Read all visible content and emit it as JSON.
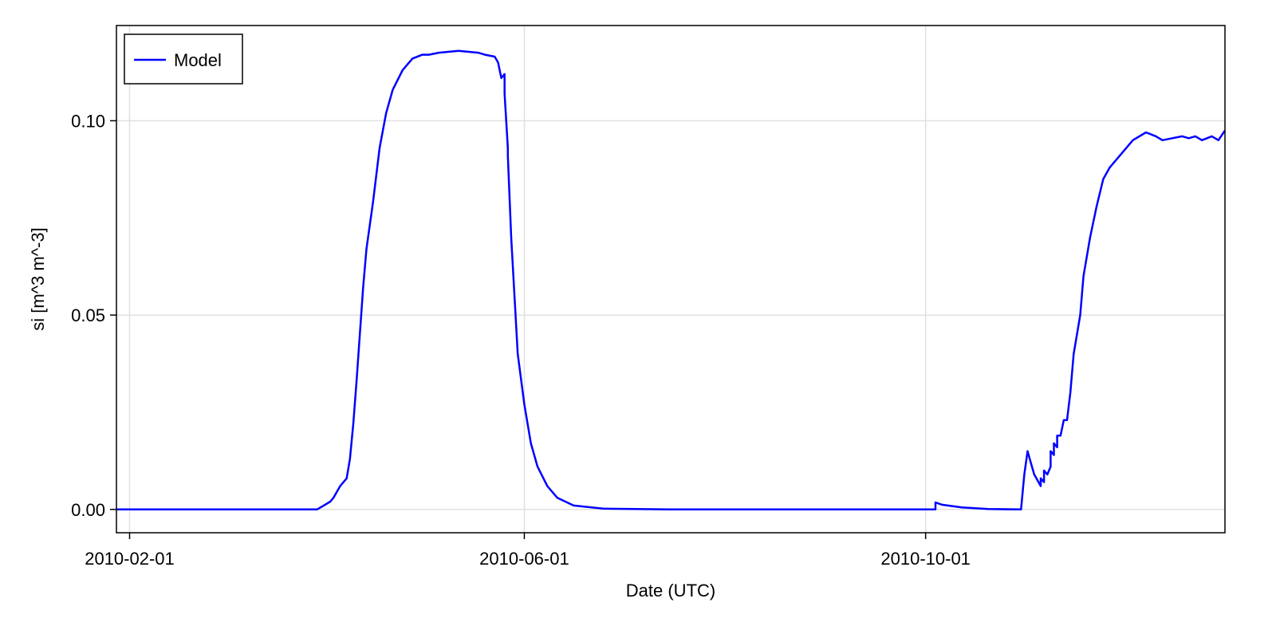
{
  "chart_data": {
    "type": "line",
    "title": "",
    "xlabel": "Date (UTC)",
    "ylabel": "si [m^3 m^-3]",
    "x_tick_labels": [
      "2010-02-01",
      "2010-06-01",
      "2010-10-01"
    ],
    "x_tick_dates": [
      "2010-02-01",
      "2010-06-01",
      "2010-10-01"
    ],
    "y_tick_labels": [
      "0.00",
      "0.05",
      "0.10"
    ],
    "y_tick_values": [
      0.0,
      0.05,
      0.1
    ],
    "xlim": [
      "2010-01-28",
      "2010-12-31"
    ],
    "ylim": [
      -0.006,
      0.1245
    ],
    "grid": true,
    "legend_position": "top-left",
    "colors": {
      "model": "#0000ff"
    },
    "series": [
      {
        "name": "Model",
        "points": [
          [
            "2010-01-28",
            0.0
          ],
          [
            "2010-03-20",
            0.0
          ],
          [
            "2010-03-30",
            0.0
          ],
          [
            "2010-04-01",
            0.001
          ],
          [
            "2010-04-03",
            0.002
          ],
          [
            "2010-04-04",
            0.003
          ],
          [
            "2010-04-06",
            0.006
          ],
          [
            "2010-04-08",
            0.008
          ],
          [
            "2010-04-09",
            0.013
          ],
          [
            "2010-04-10",
            0.022
          ],
          [
            "2010-04-11",
            0.033
          ],
          [
            "2010-04-12",
            0.045
          ],
          [
            "2010-04-13",
            0.057
          ],
          [
            "2010-04-14",
            0.067
          ],
          [
            "2010-04-16",
            0.079
          ],
          [
            "2010-04-18",
            0.093
          ],
          [
            "2010-04-20",
            0.102
          ],
          [
            "2010-04-22",
            0.108
          ],
          [
            "2010-04-25",
            0.113
          ],
          [
            "2010-04-28",
            0.116
          ],
          [
            "2010-05-01",
            0.117
          ],
          [
            "2010-05-03",
            0.117
          ],
          [
            "2010-05-06",
            0.1175
          ],
          [
            "2010-05-12",
            0.118
          ],
          [
            "2010-05-18",
            0.1175
          ],
          [
            "2010-05-20",
            0.117
          ],
          [
            "2010-05-23",
            0.1165
          ],
          [
            "2010-05-24",
            0.115
          ],
          [
            "2010-05-25",
            0.111
          ],
          [
            "2010-05-26",
            0.112
          ],
          [
            "2010-05-26",
            0.107
          ],
          [
            "2010-05-27",
            0.093
          ],
          [
            "2010-05-27",
            0.091
          ],
          [
            "2010-05-28",
            0.07
          ],
          [
            "2010-05-29",
            0.055
          ],
          [
            "2010-05-30",
            0.04
          ],
          [
            "2010-06-01",
            0.027
          ],
          [
            "2010-06-03",
            0.017
          ],
          [
            "2010-06-05",
            0.011
          ],
          [
            "2010-06-08",
            0.006
          ],
          [
            "2010-06-11",
            0.003
          ],
          [
            "2010-06-16",
            0.001
          ],
          [
            "2010-06-25",
            0.0002
          ],
          [
            "2010-07-15",
            0.0
          ],
          [
            "2010-10-04",
            0.0
          ],
          [
            "2010-10-04",
            0.0018
          ],
          [
            "2010-10-06",
            0.0012
          ],
          [
            "2010-10-12",
            0.0005
          ],
          [
            "2010-10-20",
            0.0001
          ],
          [
            "2010-10-30",
            0.0
          ],
          [
            "2010-10-31",
            0.009
          ],
          [
            "2010-11-01",
            0.015
          ],
          [
            "2010-11-02",
            0.012
          ],
          [
            "2010-11-03",
            0.009
          ],
          [
            "2010-11-05",
            0.006
          ],
          [
            "2010-11-05",
            0.008
          ],
          [
            "2010-11-06",
            0.007
          ],
          [
            "2010-11-06",
            0.01
          ],
          [
            "2010-11-07",
            0.009
          ],
          [
            "2010-11-08",
            0.011
          ],
          [
            "2010-11-08",
            0.015
          ],
          [
            "2010-11-09",
            0.014
          ],
          [
            "2010-11-09",
            0.017
          ],
          [
            "2010-11-10",
            0.016
          ],
          [
            "2010-11-10",
            0.019
          ],
          [
            "2010-11-11",
            0.019
          ],
          [
            "2010-11-12",
            0.023
          ],
          [
            "2010-11-13",
            0.023
          ],
          [
            "2010-11-14",
            0.03
          ],
          [
            "2010-11-15",
            0.04
          ],
          [
            "2010-11-17",
            0.05
          ],
          [
            "2010-11-18",
            0.06
          ],
          [
            "2010-11-20",
            0.07
          ],
          [
            "2010-11-22",
            0.078
          ],
          [
            "2010-11-24",
            0.085
          ],
          [
            "2010-11-26",
            0.088
          ],
          [
            "2010-11-29",
            0.091
          ],
          [
            "2010-12-03",
            0.095
          ],
          [
            "2010-12-07",
            0.097
          ],
          [
            "2010-12-10",
            0.096
          ],
          [
            "2010-12-12",
            0.095
          ],
          [
            "2010-12-15",
            0.0955
          ],
          [
            "2010-12-18",
            0.096
          ],
          [
            "2010-12-20",
            0.0955
          ],
          [
            "2010-12-22",
            0.096
          ],
          [
            "2010-12-24",
            0.095
          ],
          [
            "2010-12-27",
            0.096
          ],
          [
            "2010-12-29",
            0.095
          ],
          [
            "2010-12-31",
            0.0975
          ]
        ]
      }
    ]
  }
}
